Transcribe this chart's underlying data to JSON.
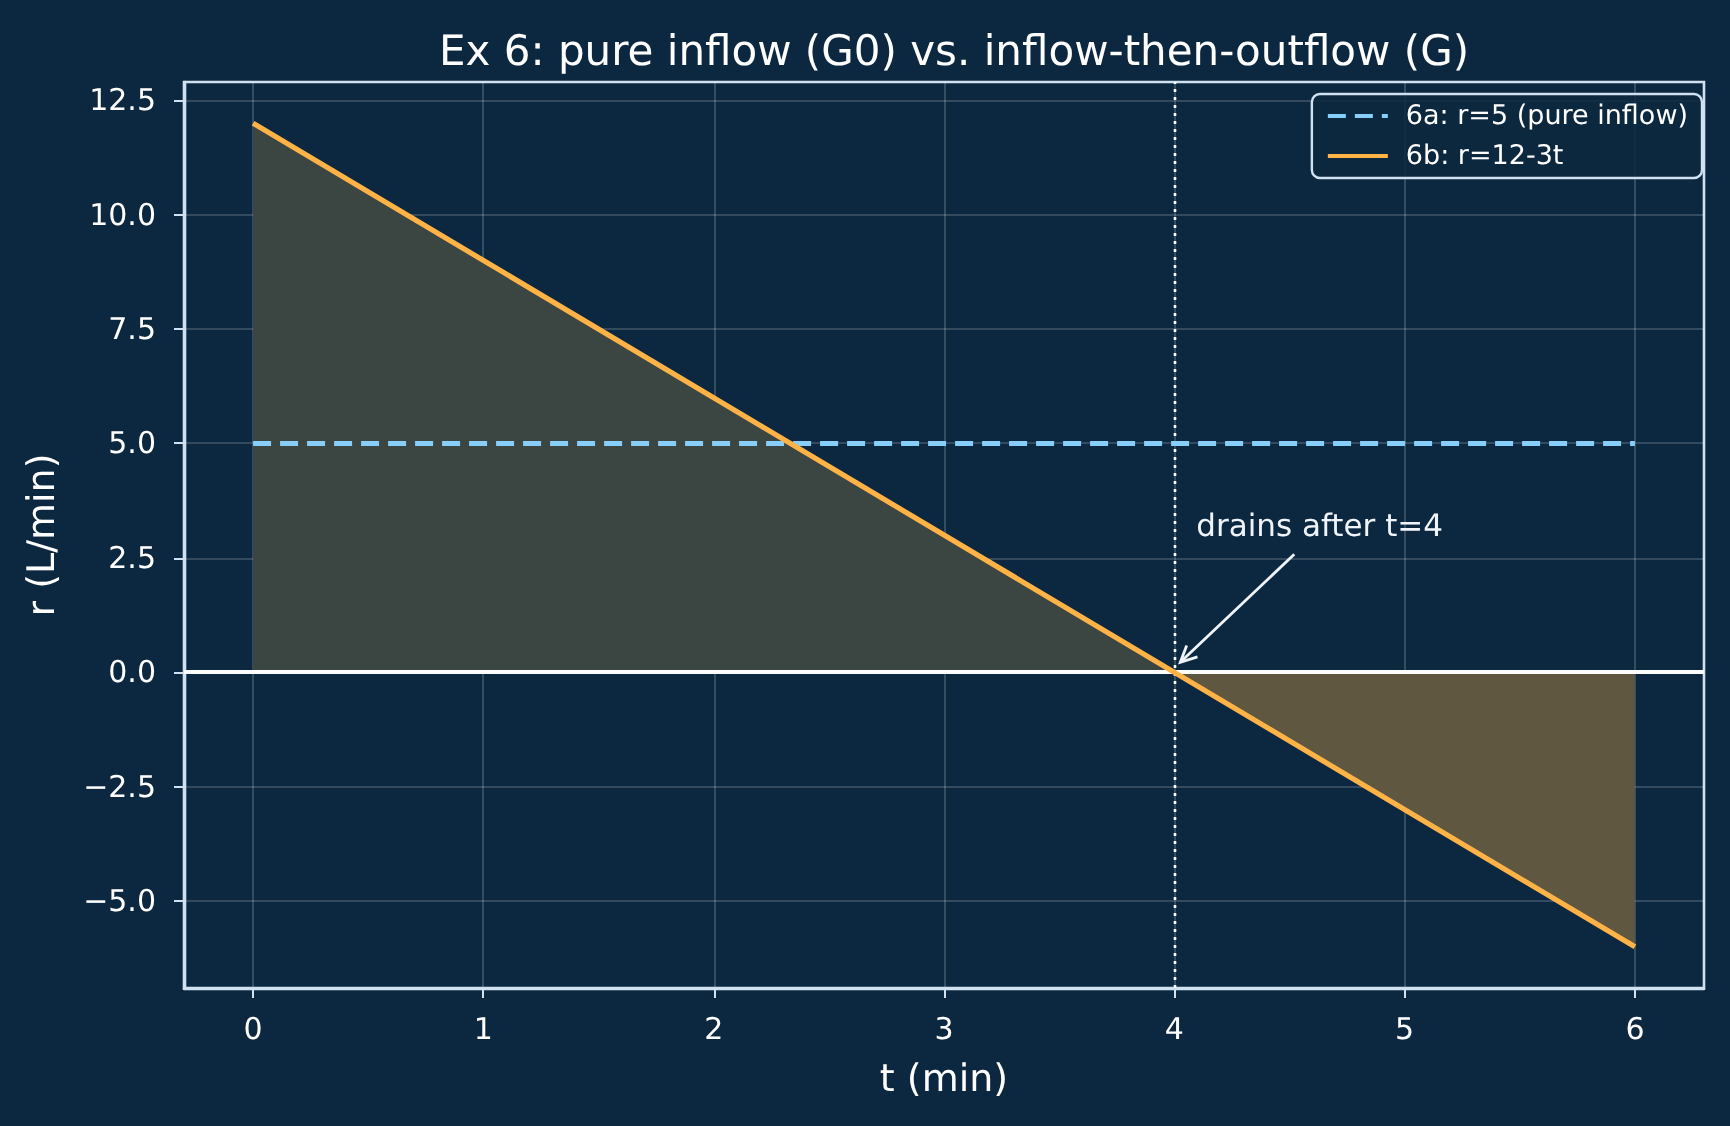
{
  "chart_data": {
    "type": "line",
    "title": "Ex 6: pure inflow (G0) vs. inflow-then-outflow (G)",
    "xlabel": "t (min)",
    "ylabel": "r (L/min)",
    "series": [
      {
        "type": "area",
        "color": "#3b4541",
        "x": [
          0,
          4
        ],
        "values": [
          12,
          0
        ]
      },
      {
        "type": "area",
        "color": "#5f5740",
        "x": [
          4,
          6
        ],
        "values": [
          0,
          -6
        ]
      },
      {
        "name": "6a: r=5 (pure inflow)",
        "color": "#87cefa",
        "x": [
          0,
          6
        ],
        "values": [
          5,
          5
        ],
        "line_style": "dashed"
      },
      {
        "name": "6b: r=12-3t",
        "color": "#ffb347",
        "x": [
          0,
          6
        ],
        "values": [
          12,
          -6
        ]
      }
    ],
    "xlim": [
      -0.3,
      6.3
    ],
    "xticks": [
      0,
      1,
      2,
      3,
      4,
      5,
      6
    ],
    "ylim": [
      -6.9,
      12.9
    ],
    "yticks": [
      {
        "value": -5,
        "label": "−5.0"
      },
      {
        "value": -2.5,
        "label": "−2.5"
      },
      {
        "value": 0,
        "label": "0.0"
      },
      {
        "value": 2.5,
        "label": "2.5"
      },
      {
        "value": 5,
        "label": "5.0"
      },
      {
        "value": 7.5,
        "label": "7.5"
      },
      {
        "value": 10,
        "label": "10.0"
      },
      {
        "value": 12.5,
        "label": "12.5"
      }
    ],
    "grid": true,
    "legend": "top right",
    "marker": "none",
    "line_style": "solid",
    "ref_lines": [
      {
        "axis": "y",
        "value": 0,
        "color": "#ffffff",
        "line_style": "solid"
      },
      {
        "axis": "x",
        "value": 4,
        "color": "#ffffff",
        "line_style": "dotted"
      }
    ],
    "annotations": [
      {
        "text": "drains after t=4",
        "x": 4,
        "y": 0
      }
    ]
  }
}
